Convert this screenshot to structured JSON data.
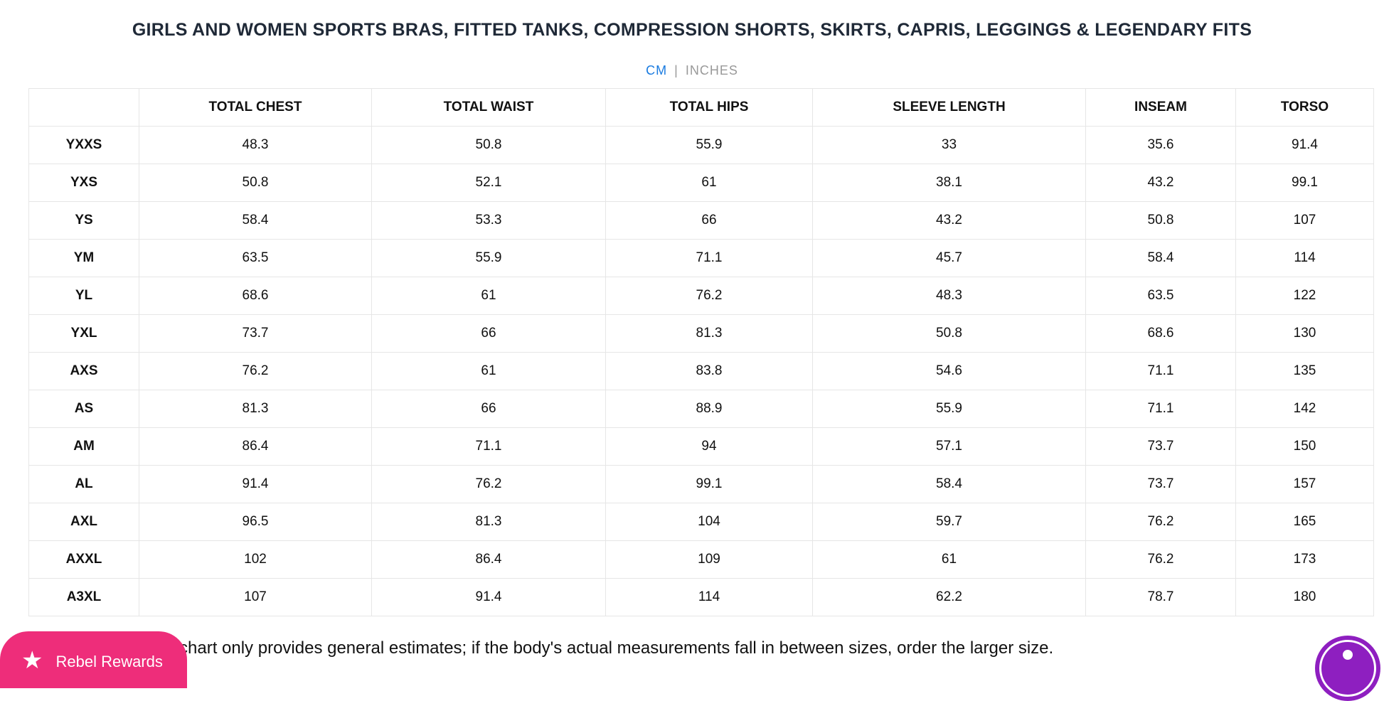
{
  "title": "GIRLS AND WOMEN SPORTS BRAS, FITTED TANKS, COMPRESSION SHORTS, SKIRTS, CAPRIS, LEGGINGS & LEGENDARY FITS",
  "units": {
    "cm": "CM",
    "separator": "|",
    "inches": "INCHES",
    "active": "CM",
    "active_color": "#1a7be0"
  },
  "table": {
    "headers": [
      "",
      "TOTAL CHEST",
      "TOTAL WAIST",
      "TOTAL HIPS",
      "SLEEVE LENGTH",
      "INSEAM",
      "TORSO"
    ],
    "rows": [
      [
        "YXXS",
        "48.3",
        "50.8",
        "55.9",
        "33",
        "35.6",
        "91.4"
      ],
      [
        "YXS",
        "50.8",
        "52.1",
        "61",
        "38.1",
        "43.2",
        "99.1"
      ],
      [
        "YS",
        "58.4",
        "53.3",
        "66",
        "43.2",
        "50.8",
        "107"
      ],
      [
        "YM",
        "63.5",
        "55.9",
        "71.1",
        "45.7",
        "58.4",
        "114"
      ],
      [
        "YL",
        "68.6",
        "61",
        "76.2",
        "48.3",
        "63.5",
        "122"
      ],
      [
        "YXL",
        "73.7",
        "66",
        "81.3",
        "50.8",
        "68.6",
        "130"
      ],
      [
        "AXS",
        "76.2",
        "61",
        "83.8",
        "54.6",
        "71.1",
        "135"
      ],
      [
        "AS",
        "81.3",
        "66",
        "88.9",
        "55.9",
        "71.1",
        "142"
      ],
      [
        "AM",
        "86.4",
        "71.1",
        "94",
        "57.1",
        "73.7",
        "150"
      ],
      [
        "AL",
        "91.4",
        "76.2",
        "99.1",
        "58.4",
        "73.7",
        "157"
      ],
      [
        "AXL",
        "96.5",
        "81.3",
        "104",
        "59.7",
        "76.2",
        "165"
      ],
      [
        "AXXL",
        "102",
        "86.4",
        "109",
        "61",
        "76.2",
        "173"
      ],
      [
        "A3XL",
        "107",
        "91.4",
        "114",
        "62.2",
        "78.7",
        "180"
      ]
    ]
  },
  "note": "This chart only provides general estimates; if the body's actual measurements fall in between sizes, order the larger size.",
  "rewards": {
    "label": "Rebel Rewards",
    "icon": "star-icon",
    "color": "#ee2d7a"
  },
  "accessibility": {
    "icon": "accessibility-icon",
    "color": "#8e1fc0"
  }
}
